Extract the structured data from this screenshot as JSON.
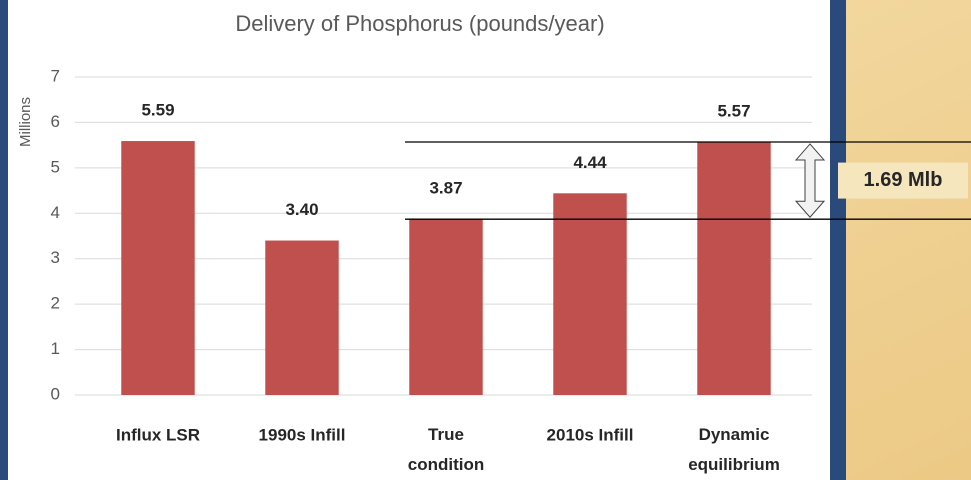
{
  "chart_data": {
    "type": "bar",
    "title": "Delivery of Phosphorus (pounds/year)",
    "y_label": "Millions",
    "categories": [
      "Influx LSR",
      "1990s Infill",
      "True\ncondition",
      "2010s Infill",
      "Dynamic\nequilibrium"
    ],
    "values": [
      5.59,
      3.4,
      3.87,
      4.44,
      5.57
    ],
    "value_labels": [
      "5.59",
      "3.40",
      "3.87",
      "4.44",
      "5.57"
    ],
    "color": "#c0504d",
    "ylim": [
      0,
      7
    ],
    "yticks": [
      0,
      1,
      2,
      3,
      4,
      5,
      6,
      7
    ],
    "grid": true,
    "annotation": "1.69 Mlb"
  }
}
